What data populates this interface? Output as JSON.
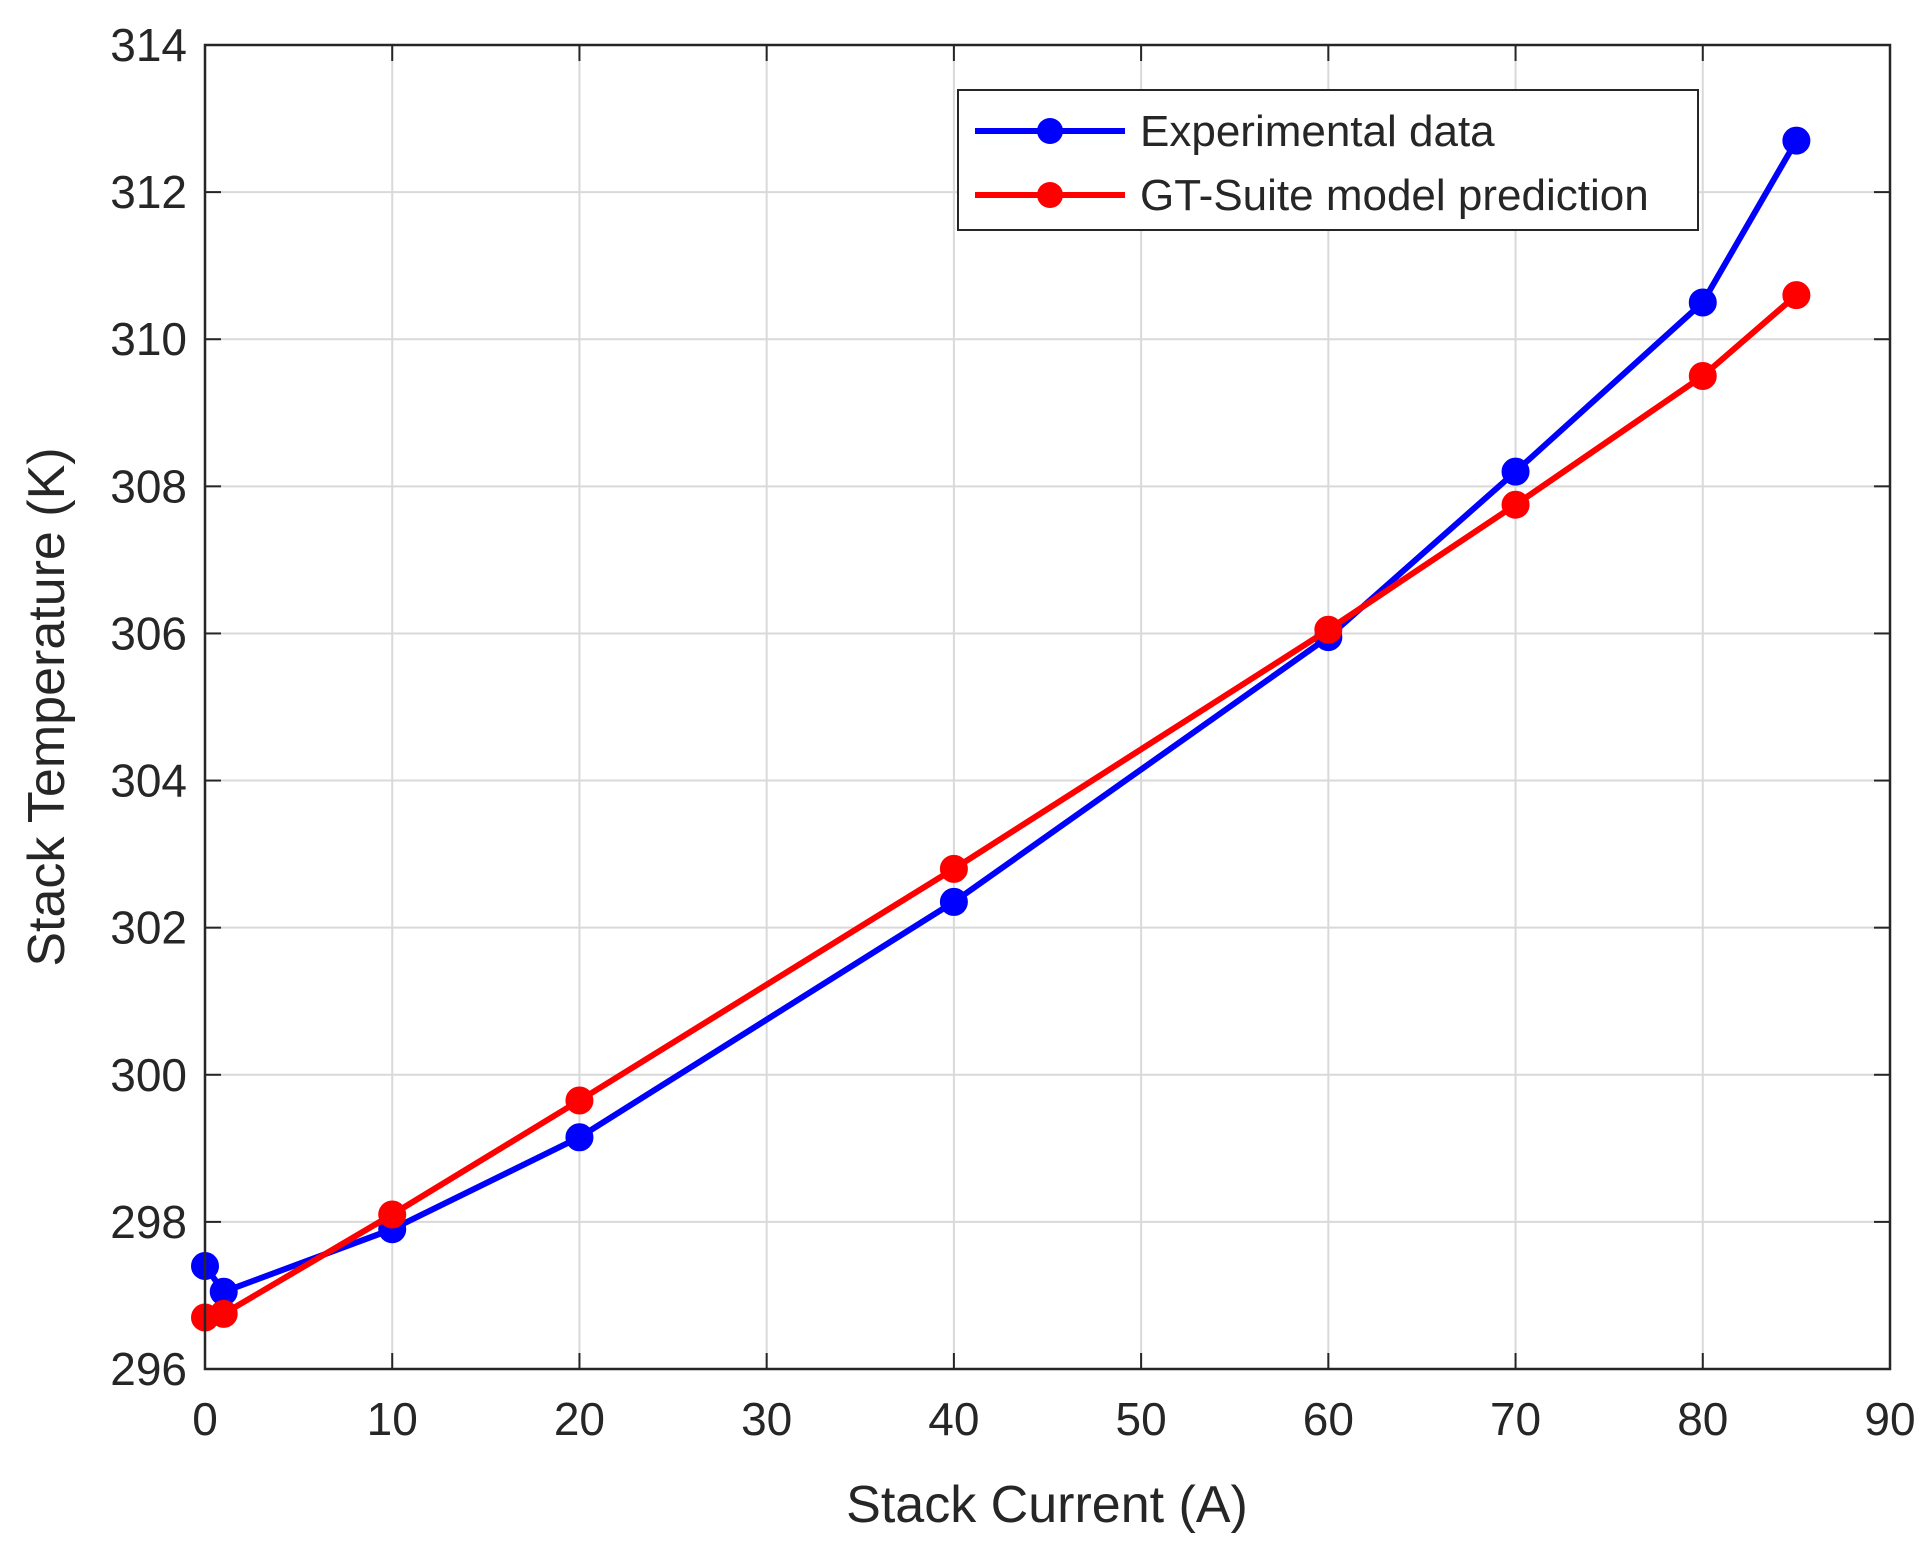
{
  "chart_data": {
    "type": "line",
    "title": "",
    "xlabel": "Stack Current (A)",
    "ylabel": "Stack Temperature (K)",
    "xlim": [
      0,
      90
    ],
    "ylim": [
      296,
      314
    ],
    "xticks": [
      "0",
      "10",
      "20",
      "30",
      "40",
      "50",
      "60",
      "70",
      "80",
      "90"
    ],
    "yticks": [
      "296",
      "298",
      "300",
      "302",
      "304",
      "306",
      "308",
      "310",
      "312",
      "314"
    ],
    "grid": true,
    "legend_position": "top-right",
    "series": [
      {
        "name": "Experimental data",
        "color": "#0000ff",
        "x": [
          0,
          1,
          10,
          20,
          40,
          60,
          70,
          80,
          85
        ],
        "y": [
          297.4,
          297.05,
          297.9,
          299.15,
          302.35,
          305.95,
          308.2,
          310.5,
          312.7
        ]
      },
      {
        "name": "GT-Suite model prediction",
        "color": "#ff0000",
        "x": [
          0,
          1,
          10,
          20,
          40,
          60,
          70,
          80,
          85
        ],
        "y": [
          296.7,
          296.75,
          298.1,
          299.65,
          302.8,
          306.05,
          307.75,
          309.5,
          310.6
        ]
      }
    ]
  }
}
